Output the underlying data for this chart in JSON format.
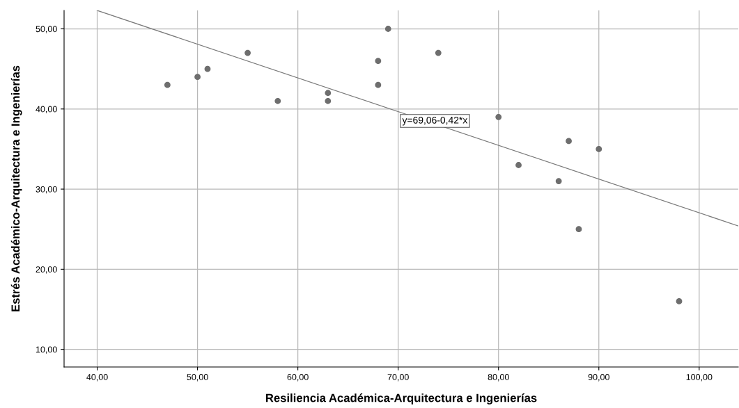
{
  "chart_data": {
    "type": "scatter",
    "xlabel": "Resiliencia Académica-Arquitectura e Ingenierías",
    "ylabel": "Estrés Académico-Arquitectura e Ingenierías",
    "series": [
      {
        "color": "#6e6e6e",
        "marker": "circle",
        "x": [
          47,
          50,
          51,
          55,
          58,
          63,
          63,
          68,
          68,
          69,
          74,
          80,
          82,
          86,
          87,
          88,
          90,
          98
        ],
        "values": [
          43,
          44,
          45,
          47,
          41,
          42,
          41,
          46,
          43,
          50,
          47,
          39,
          33,
          31,
          36,
          25,
          35,
          16
        ]
      },
      {
        "type": "line",
        "color": "#7a7a7a",
        "x": [
          40,
          103.9
        ],
        "values": [
          52.3,
          25.4
        ]
      }
    ],
    "annotations": [
      "y=69,06-0,42*x"
    ],
    "xlim": [
      36.7,
      103.9
    ],
    "ylim": [
      7.8,
      52.3
    ],
    "xticks": [
      {
        "value": 40,
        "label": "40,00"
      },
      {
        "value": 50,
        "label": "50,00"
      },
      {
        "value": 60,
        "label": "60,00"
      },
      {
        "value": 70,
        "label": "70,00"
      },
      {
        "value": 80,
        "label": "80,00"
      },
      {
        "value": 90,
        "label": "90,00"
      },
      {
        "value": 100,
        "label": "100,00"
      }
    ],
    "yticks": [
      {
        "value": 10,
        "label": "10,00"
      },
      {
        "value": 20,
        "label": "20,00"
      },
      {
        "value": 30,
        "label": "30,00"
      },
      {
        "value": 40,
        "label": "40,00"
      },
      {
        "value": 50,
        "label": "50,00"
      }
    ],
    "grid": true
  }
}
